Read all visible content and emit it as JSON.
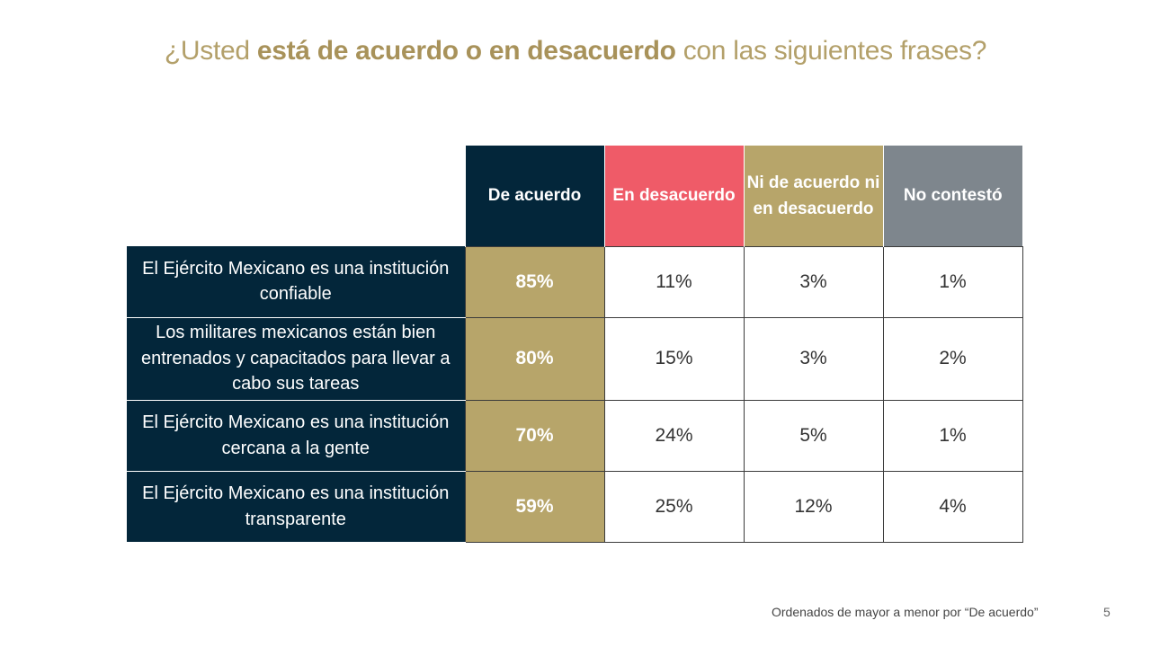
{
  "title": {
    "prefix": "¿Usted ",
    "bold": "está de acuerdo o en desacuerdo",
    "suffix": " con las siguientes frases?"
  },
  "chart_data": {
    "type": "table",
    "columns": [
      {
        "label": "De acuerdo",
        "color": "#03263a"
      },
      {
        "label": "En desacuerdo",
        "color": "#ef5b68"
      },
      {
        "label": "Ni de acuerdo ni en desacuerdo",
        "color": "#b7a56a"
      },
      {
        "label": "No contestó",
        "color": "#7e868d"
      }
    ],
    "rows": [
      {
        "label": "El Ejército Mexicano es una institución confiable",
        "values": [
          "85%",
          "11%",
          "3%",
          "1%"
        ]
      },
      {
        "label": "Los militares mexicanos están bien entrenados y capacitados para llevar a cabo sus tareas",
        "values": [
          "80%",
          "15%",
          "3%",
          "2%"
        ]
      },
      {
        "label": "El Ejército Mexicano es una institución cercana a la gente",
        "values": [
          "70%",
          "24%",
          "5%",
          "1%"
        ]
      },
      {
        "label": "El Ejército Mexicano es una institución transparente",
        "values": [
          "59%",
          "25%",
          "12%",
          "4%"
        ]
      }
    ],
    "highlight_color": "#b7a56a",
    "row_label_color": "#03263a"
  },
  "footnote": "Ordenados de mayor a menor por “De acuerdo”",
  "page_number": "5"
}
